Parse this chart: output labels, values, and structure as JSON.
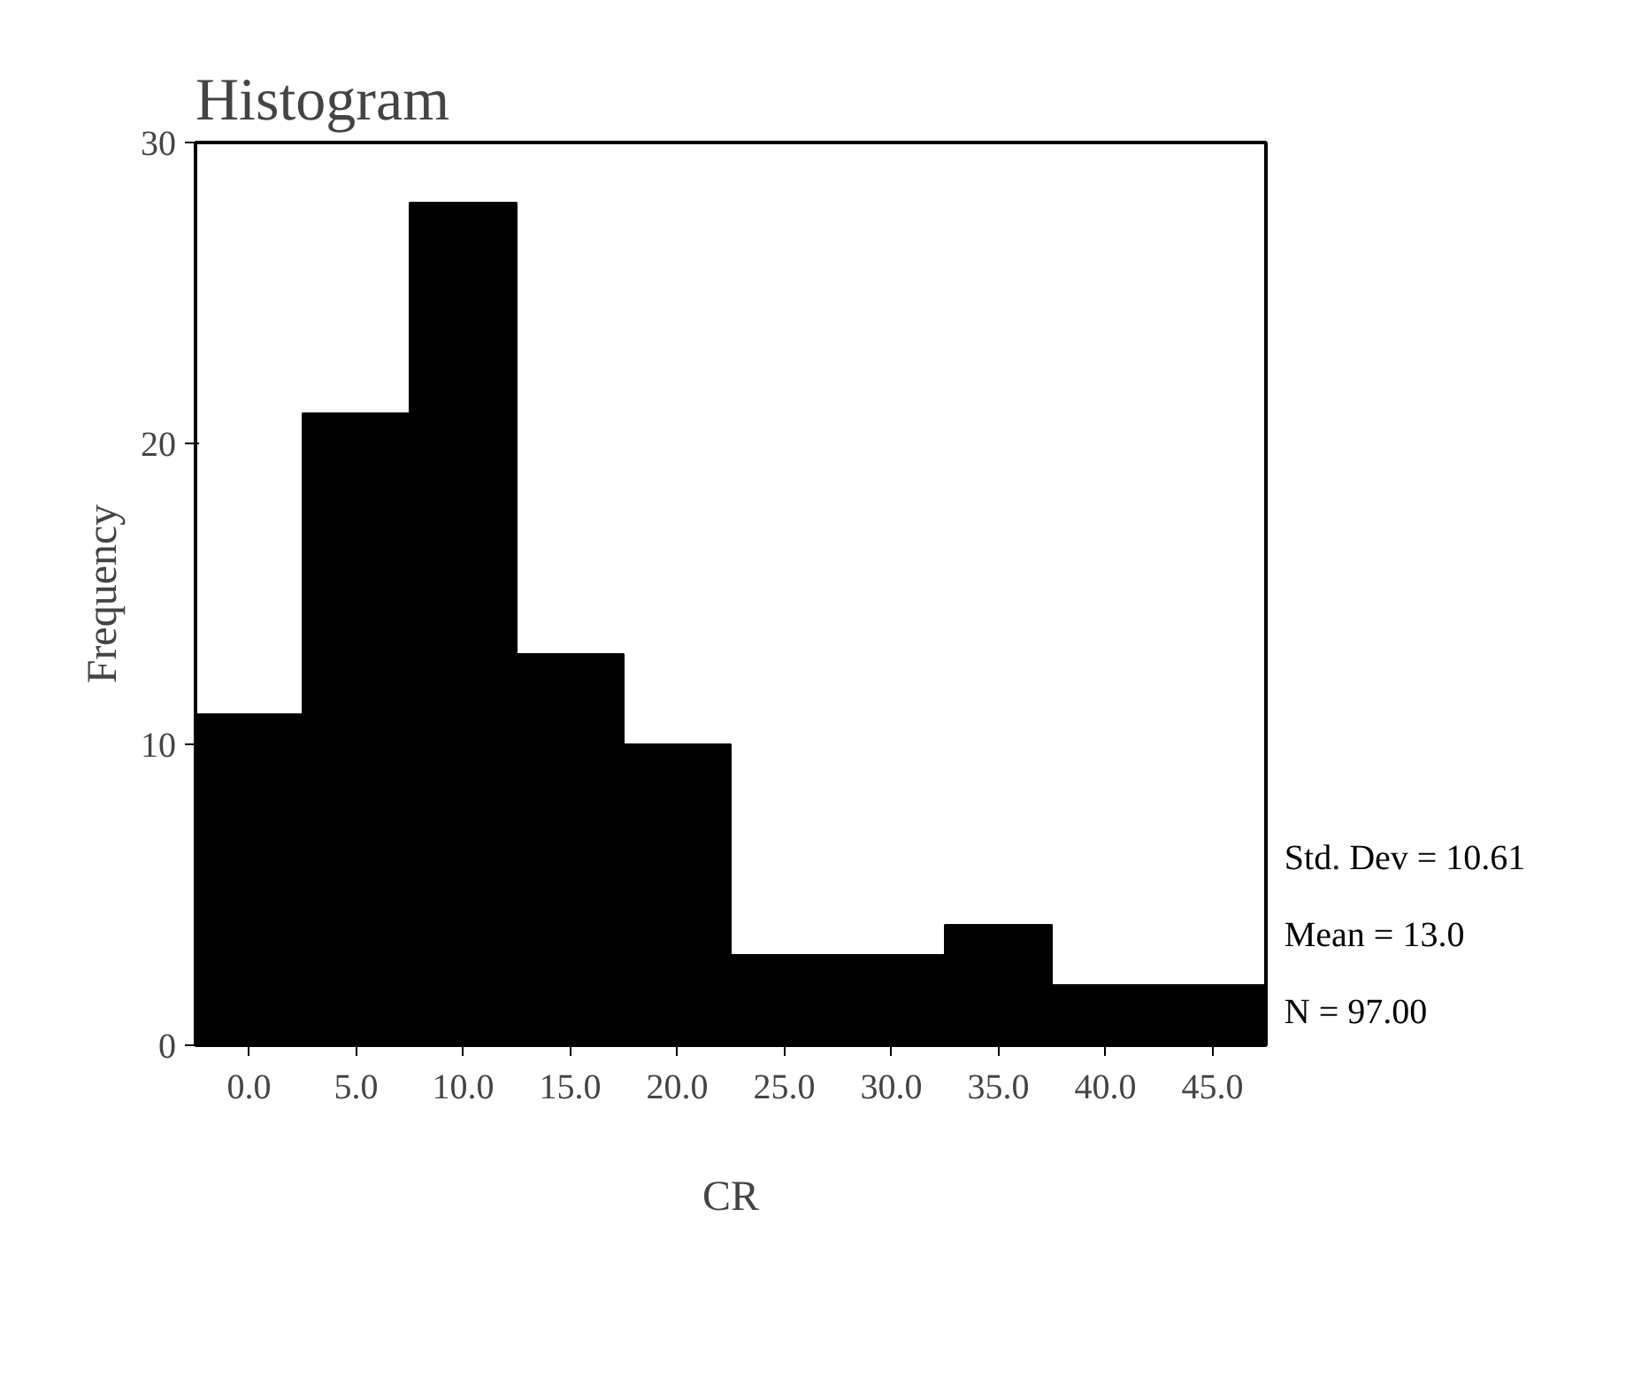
{
  "chart_data": {
    "type": "histogram",
    "title": "Histogram",
    "xlabel": "CR",
    "ylabel": "Frequency",
    "bins": [
      -2.5,
      2.5,
      7.5,
      12.5,
      17.5,
      22.5,
      27.5,
      32.5,
      37.5,
      42.5,
      47.5
    ],
    "values": [
      11,
      21,
      28,
      13,
      10,
      3,
      3,
      4,
      2,
      2
    ],
    "color": "#000000",
    "xlim": [
      -2.5,
      47.5
    ],
    "xticks": [
      {
        "value": 0,
        "label": "0.0"
      },
      {
        "value": 5,
        "label": "5.0"
      },
      {
        "value": 10,
        "label": "10.0"
      },
      {
        "value": 15,
        "label": "15.0"
      },
      {
        "value": 20,
        "label": "20.0"
      },
      {
        "value": 25,
        "label": "25.0"
      },
      {
        "value": 30,
        "label": "30.0"
      },
      {
        "value": 35,
        "label": "35.0"
      },
      {
        "value": 40,
        "label": "40.0"
      },
      {
        "value": 45,
        "label": "45.0"
      }
    ],
    "ylim": [
      0,
      30
    ],
    "yticks": [
      0,
      10,
      20,
      30
    ],
    "grid": false,
    "annotations": [
      "Std. Dev = 10.61",
      "Mean = 13.0",
      "N = 97.00"
    ]
  }
}
